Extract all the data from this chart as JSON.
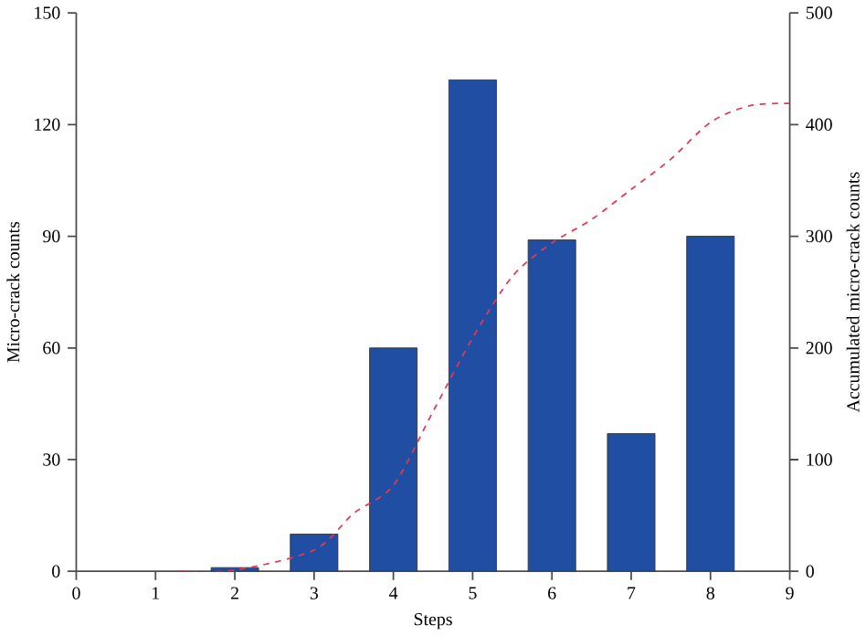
{
  "chart_data": {
    "type": "bar",
    "xlabel": "Steps",
    "ylabel": "Micro-crack counts",
    "y2label": "Accumulated micro-crack counts",
    "xlim": [
      0,
      9
    ],
    "xticks": [
      0,
      1,
      2,
      3,
      4,
      5,
      6,
      7,
      8,
      9
    ],
    "ylim": [
      0,
      150
    ],
    "yticks": [
      0,
      30,
      60,
      90,
      120,
      150
    ],
    "y2lim": [
      0,
      500
    ],
    "y2ticks": [
      0,
      100,
      200,
      300,
      400,
      500
    ],
    "series": [
      {
        "color": "#1f4ea3",
        "x": [
          2,
          3,
          4,
          5,
          6,
          7,
          8
        ],
        "values": [
          1,
          10,
          60,
          132,
          89,
          37,
          90
        ]
      },
      {
        "type": "line",
        "axis": "y2",
        "color": "#e8384f",
        "line_style": "dashed",
        "marker": "none",
        "x": [
          1.3,
          2,
          3,
          3.5,
          4,
          4.5,
          5,
          5.5,
          6,
          6.5,
          7,
          7.5,
          8,
          8.5,
          9
        ],
        "values": [
          0,
          1,
          19,
          52,
          77,
          143,
          209,
          264,
          294,
          315,
          342,
          369,
          402,
          417,
          419
        ]
      }
    ]
  }
}
